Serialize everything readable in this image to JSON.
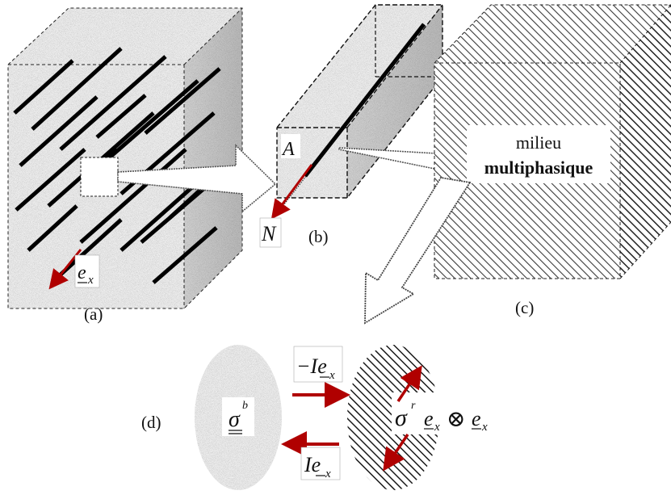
{
  "panels": {
    "a": {
      "caption": "(a)",
      "vector_label": "e",
      "vector_subscript": "x"
    },
    "b": {
      "caption": "(b)",
      "point_label": "A",
      "normal_label": "N"
    },
    "c": {
      "caption": "(c)",
      "label_line1": "milieu",
      "label_line2": "multiphasique"
    },
    "d": {
      "caption": "(d)",
      "stress_left": "σ",
      "stress_left_sup": "b",
      "arrow_top_label": "−Ie",
      "arrow_top_sub": "x",
      "arrow_bottom_label": "Ie",
      "arrow_bottom_sub": "x",
      "stress_right": "σ",
      "stress_right_sup": "r",
      "tensor_e1": "e",
      "tensor_sub1": "x",
      "tensor_op": "⊗",
      "tensor_e2": "e",
      "tensor_sub2": "x"
    }
  },
  "colors": {
    "fiber": "#000000",
    "vector_red": "#b00000",
    "matrix_gray": "#b8b8b8",
    "hatch": "#444444"
  }
}
